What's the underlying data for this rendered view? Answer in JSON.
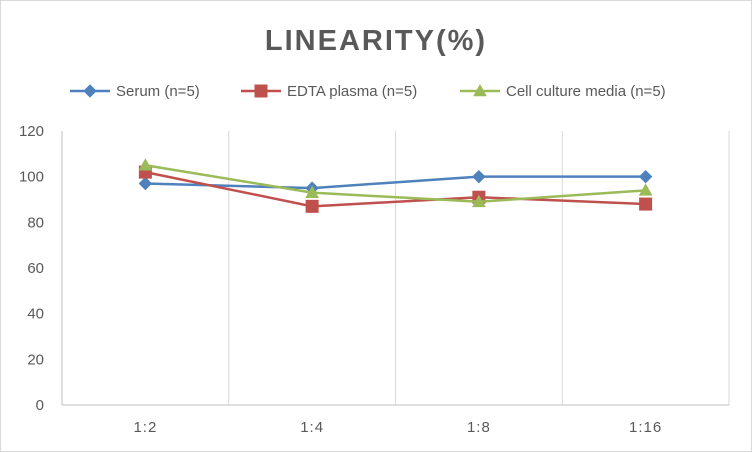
{
  "chart_data": {
    "type": "line",
    "title": "LINEARITY(%)",
    "categories": [
      "1:2",
      "1:4",
      "1:8",
      "1:16"
    ],
    "xlabel": "",
    "ylabel": "",
    "ylim": [
      0,
      120
    ],
    "yticks": [
      0,
      20,
      40,
      60,
      80,
      100,
      120
    ],
    "grid": "vertical",
    "legend": "top",
    "series": [
      {
        "name": "Serum (n=5)",
        "values": [
          97,
          95,
          100,
          100
        ],
        "color": "#4f81bd",
        "marker": "diamond"
      },
      {
        "name": "EDTA plasma (n=5)",
        "values": [
          102,
          87,
          91,
          88
        ],
        "color": "#c0504d",
        "marker": "square"
      },
      {
        "name": "Cell culture media (n=5)",
        "values": [
          105,
          93,
          89,
          94
        ],
        "color": "#9bbb59",
        "marker": "triangle"
      }
    ]
  }
}
